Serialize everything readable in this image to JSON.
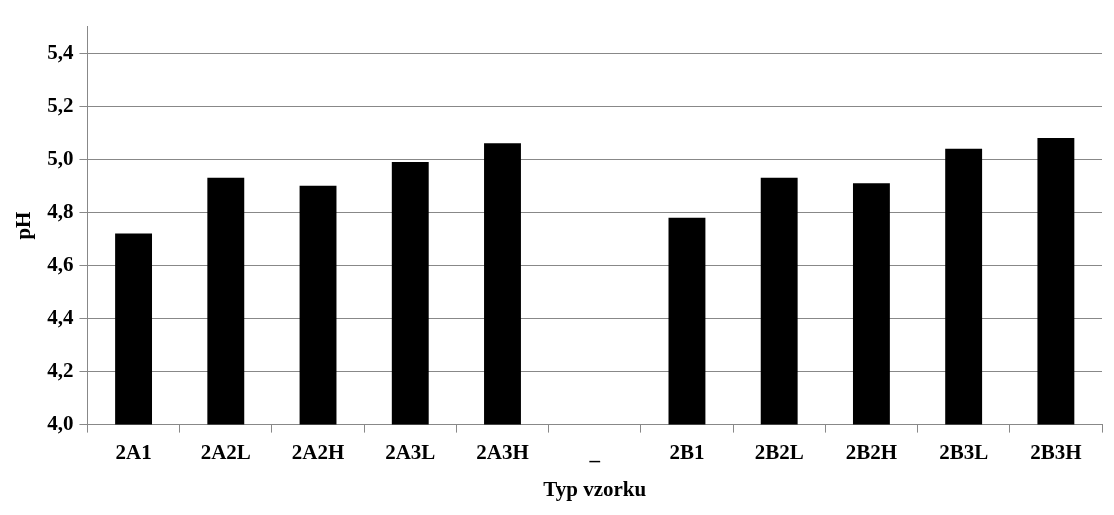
{
  "chart_data": {
    "type": "bar",
    "xlabel": "Typ vzorku",
    "ylabel": "pH",
    "categories": [
      "2A1",
      "2A2L",
      "2A2H",
      "2A3L",
      "2A3H",
      "_",
      "2B1",
      "2B2L",
      "2B2H",
      "2B3L",
      "2B3H"
    ],
    "values": [
      4.72,
      4.93,
      4.9,
      4.99,
      5.06,
      null,
      4.78,
      4.93,
      4.91,
      5.04,
      5.08
    ],
    "color": "#000000",
    "ylim": [
      4.0,
      5.5
    ],
    "yticks": [
      {
        "value": 4.0,
        "label": "4,0"
      },
      {
        "value": 4.2,
        "label": "4,2"
      },
      {
        "value": 4.4,
        "label": "4,4"
      },
      {
        "value": 4.6,
        "label": "4,6"
      },
      {
        "value": 4.8,
        "label": "4,8"
      },
      {
        "value": 5.0,
        "label": "5,0"
      },
      {
        "value": 5.2,
        "label": "5,2"
      },
      {
        "value": 5.4,
        "label": "5,4"
      }
    ],
    "grid": "y",
    "legend": false
  }
}
